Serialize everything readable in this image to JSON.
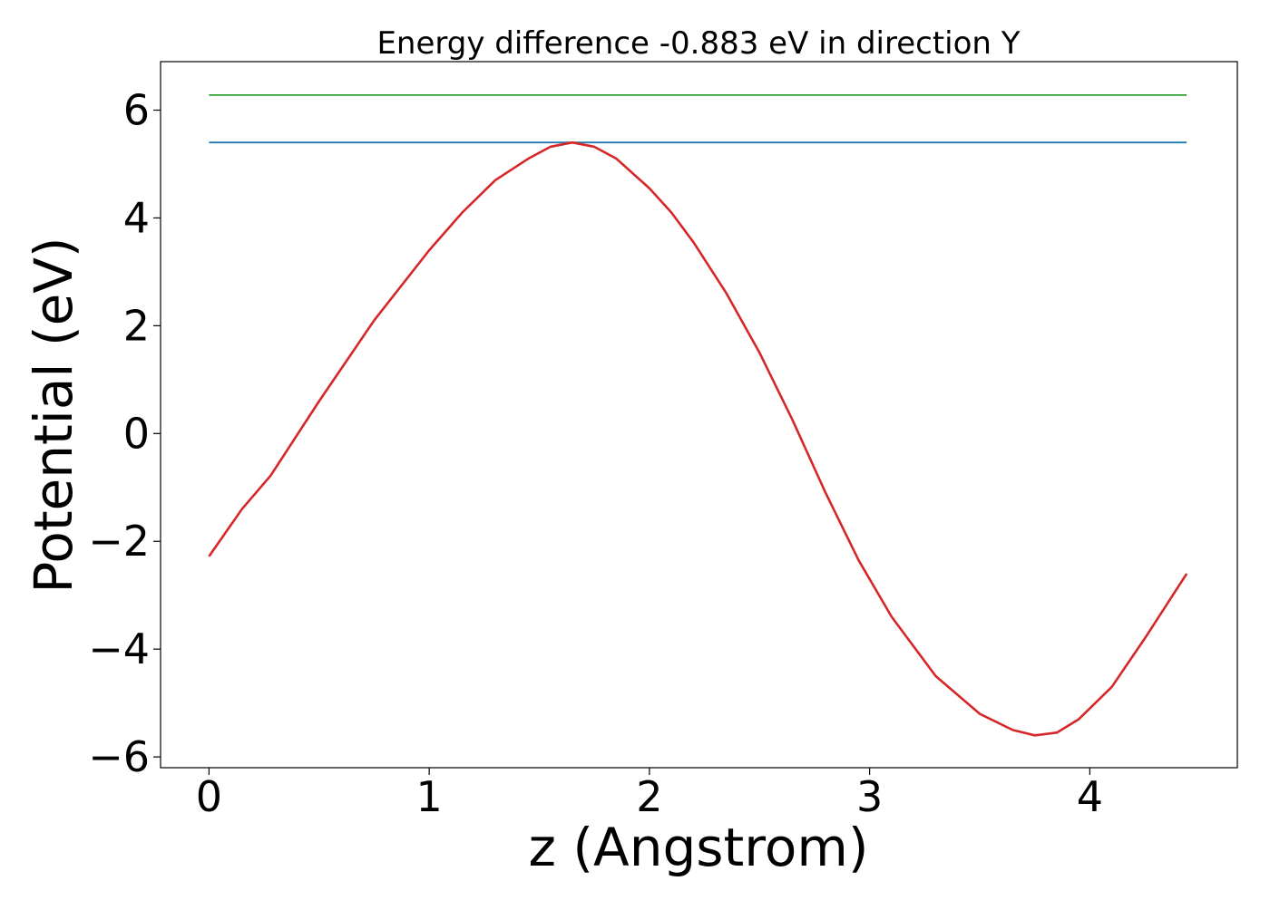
{
  "chart_data": {
    "type": "line",
    "title": "Energy difference -0.883 eV in direction Y",
    "xlabel": "z (Angstrom)",
    "ylabel": "Potential (eV)",
    "xlim": [
      -0.22,
      4.67
    ],
    "ylim": [
      -6.2,
      6.9
    ],
    "xticks": [
      0,
      1,
      2,
      3,
      4
    ],
    "yticks": [
      6,
      4,
      2,
      0,
      -2,
      -4,
      -6
    ],
    "xtick_labels": [
      "0",
      "1",
      "2",
      "3",
      "4"
    ],
    "ytick_labels": [
      "6",
      "4",
      "2",
      "0",
      "−2",
      "−4",
      "−6"
    ],
    "grid": false,
    "legend": "none",
    "series": [
      {
        "color": "#2ca02c",
        "x": [
          0.0,
          4.44
        ],
        "y": [
          6.28,
          6.28
        ]
      },
      {
        "color": "#1f77b4",
        "x": [
          0.0,
          4.44
        ],
        "y": [
          5.4,
          5.4
        ]
      },
      {
        "color": "#d62728",
        "x": [
          0.0,
          0.15,
          0.28,
          0.5,
          0.75,
          1.0,
          1.15,
          1.3,
          1.45,
          1.55,
          1.65,
          1.75,
          1.85,
          2.0,
          2.1,
          2.2,
          2.35,
          2.5,
          2.65,
          2.8,
          2.95,
          3.1,
          3.3,
          3.5,
          3.65,
          3.75,
          3.85,
          3.95,
          4.1,
          4.25,
          4.44
        ],
        "y": [
          -2.28,
          -1.4,
          -0.78,
          0.6,
          2.1,
          3.4,
          4.1,
          4.7,
          5.1,
          5.32,
          5.4,
          5.32,
          5.1,
          4.55,
          4.1,
          3.55,
          2.6,
          1.5,
          0.25,
          -1.1,
          -2.35,
          -3.4,
          -4.5,
          -5.2,
          -5.5,
          -5.6,
          -5.55,
          -5.3,
          -4.7,
          -3.8,
          -2.6
        ]
      }
    ]
  }
}
